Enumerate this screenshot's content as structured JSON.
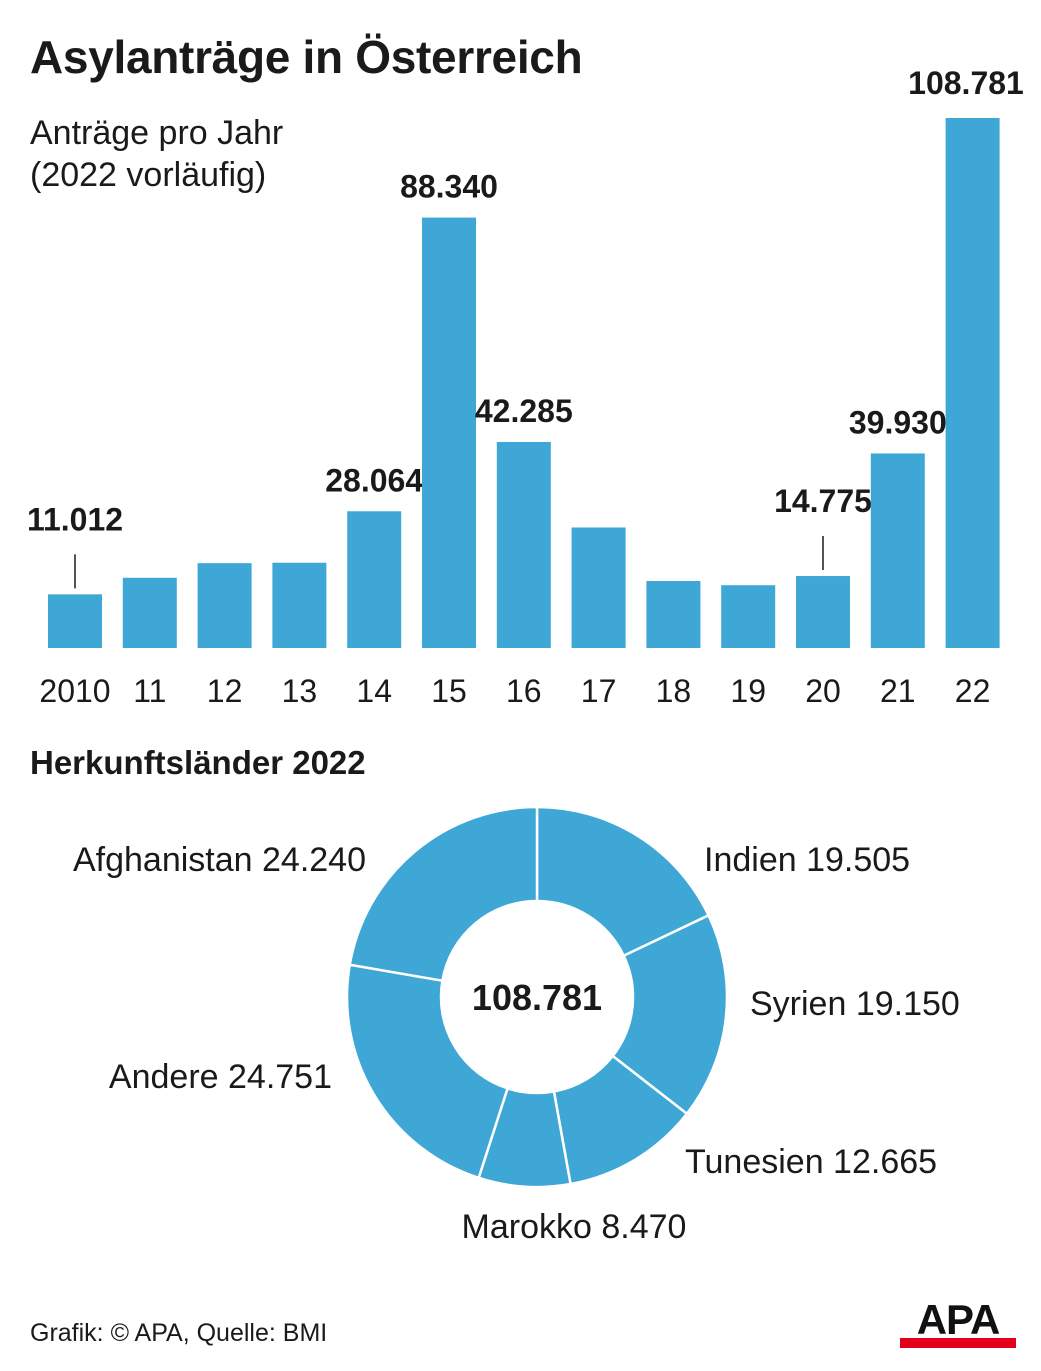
{
  "title": "Asylanträge in Österreich",
  "subtitle": [
    "Anträge pro Jahr",
    "(2022 vorläufig)"
  ],
  "colors": {
    "bar": "#3ea7d5",
    "text": "#1a1a1a",
    "logo_red": "#e3001b"
  },
  "chart_data": [
    {
      "type": "bar",
      "title": "Anträge pro Jahr",
      "categories": [
        "2010",
        "11",
        "12",
        "13",
        "14",
        "15",
        "16",
        "17",
        "18",
        "19",
        "20",
        "21",
        "22"
      ],
      "values": [
        11012,
        14416,
        17413,
        17503,
        28064,
        88340,
        42285,
        24735,
        13746,
        12886,
        14775,
        39930,
        108781
      ],
      "labels": [
        "11.012",
        "",
        "",
        "",
        "28.064",
        "88.340",
        "42.285",
        "",
        "",
        "",
        "14.775",
        "39.930",
        "108.781"
      ],
      "ylim": [
        0,
        108781
      ],
      "xlabel": "",
      "ylabel": "",
      "grid": false
    },
    {
      "type": "pie",
      "title": "Herkunftsländer 2022",
      "center_label": "108.781",
      "categories": [
        "Indien",
        "Syrien",
        "Tunesien",
        "Marokko",
        "Andere",
        "Afghanistan"
      ],
      "values": [
        19505,
        19150,
        12665,
        8470,
        24751,
        24240
      ],
      "value_labels": [
        "19.505",
        "19.150",
        "12.665",
        "8.470",
        "24.751",
        "24.240"
      ]
    }
  ],
  "footer": "Grafik: © APA, Quelle: BMI",
  "logo": "APA"
}
